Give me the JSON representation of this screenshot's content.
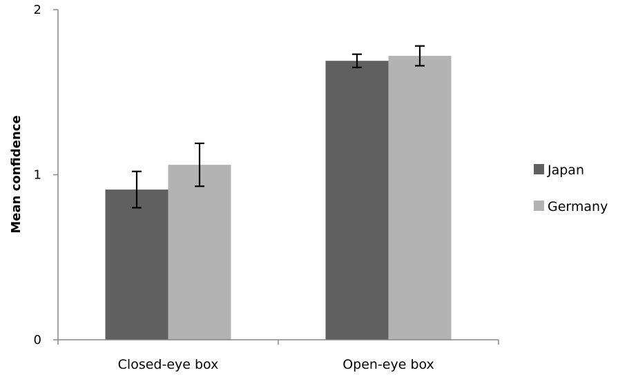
{
  "chart_data": {
    "type": "bar",
    "categories": [
      "Closed-eye box",
      "Open-eye box"
    ],
    "series": [
      {
        "name": "Japan",
        "color": "#606060",
        "values": [
          0.91,
          1.69
        ],
        "error": [
          0.11,
          0.04
        ]
      },
      {
        "name": "Germany",
        "color": "#b3b3b3",
        "values": [
          1.06,
          1.72
        ],
        "error": [
          0.13,
          0.06
        ]
      }
    ],
    "title": "",
    "xlabel": "",
    "ylabel": "Mean confidence",
    "ylim": [
      0,
      2
    ],
    "yticks": [
      "0",
      "1",
      "2"
    ],
    "grid": false,
    "legend_position": "right"
  }
}
